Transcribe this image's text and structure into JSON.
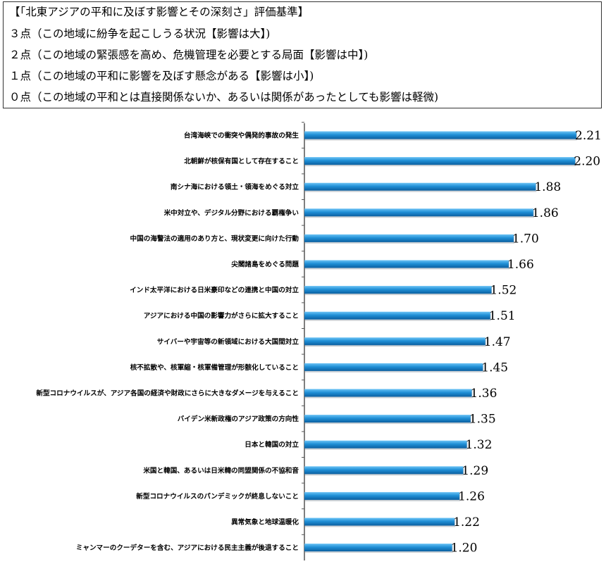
{
  "legend": {
    "title": "【「北東アジアの平和に及ぼす影響とその深刻さ」評価基準】",
    "lines": [
      "３点（この地域に紛争を起こしうる状況【影響は大】)",
      "２点（この地域の緊張感を高め、危機管理を必要とする局面【影響は中】)",
      "１点（この地域の平和に影響を及ぼす懸念がある【影響は小】)",
      "０点（この地域の平和とは直接関係ないか、あるいは関係があったとしても影響は軽微)"
    ]
  },
  "colors": {
    "bar": "#1f8fd6",
    "bar_dark": "#0b5fa0",
    "axis": "#555555"
  },
  "chart_data": {
    "type": "bar",
    "orientation": "horizontal",
    "categories": [
      "台湾海峡での衝突や偶発的事故の発生",
      "北朝鮮が核保有国として存在すること",
      "南シナ海における領土・領海をめぐる対立",
      "米中対立や、デジタル分野における覇権争い",
      "中国の海警法の適用のあり方と、現状変更に向けた行動",
      "尖閣諸島をめぐる問題",
      "インド太平洋における日米豪印などの連携と中国の対立",
      "アジアにおける中国の影響力がさらに拡大すること",
      "サイバーや宇宙等の新領域における大国間対立",
      "核不拡散や、核軍縮・核軍備管理が形骸化していること",
      "新型コロナウイルスが、アジア各国の経済や財政にさらに大きなダメージを与えること",
      "バイデン米新政権のアジア政策の方向性",
      "日本と韓国の対立",
      "米国と韓国、あるいは日米韓の同盟関係の不協和音",
      "新型コロナウイルスのパンデミックが終息しないこと",
      "異常気象と地球温暖化",
      "ミャンマーのクーデターを含む、アジアにおける民主主義が後退すること"
    ],
    "values": [
      2.21,
      2.2,
      1.88,
      1.86,
      1.7,
      1.66,
      1.52,
      1.51,
      1.47,
      1.45,
      1.36,
      1.35,
      1.32,
      1.29,
      1.26,
      1.22,
      1.2
    ],
    "value_labels": [
      "2.21",
      "2.20",
      "1.88",
      "1.86",
      "1.70",
      "1.66",
      "1.52",
      "1.51",
      "1.47",
      "1.45",
      "1.36",
      "1.35",
      "1.32",
      "1.29",
      "1.26",
      "1.22",
      "1.20"
    ],
    "xlim": [
      0,
      2.21
    ],
    "title": "",
    "xlabel": "",
    "ylabel": ""
  }
}
